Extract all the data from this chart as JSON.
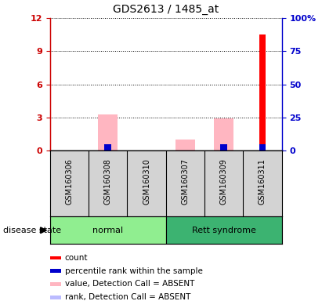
{
  "title": "GDS2613 / 1485_at",
  "samples": [
    "GSM160306",
    "GSM160308",
    "GSM160310",
    "GSM160307",
    "GSM160309",
    "GSM160311"
  ],
  "groups": [
    {
      "label": "normal",
      "indices": [
        0,
        1,
        2
      ],
      "color": "#90EE90"
    },
    {
      "label": "Rett syndrome",
      "indices": [
        3,
        4,
        5
      ],
      "color": "#3CB371"
    }
  ],
  "ylim_left": [
    0,
    12
  ],
  "ylim_right": [
    0,
    100
  ],
  "yticks_left": [
    0,
    3,
    6,
    9,
    12
  ],
  "yticks_right": [
    0,
    25,
    50,
    75,
    100
  ],
  "ytick_labels_left": [
    "0",
    "3",
    "6",
    "9",
    "12"
  ],
  "ytick_labels_right": [
    "0",
    "25",
    "50",
    "75",
    "100%"
  ],
  "bars": {
    "value_absent": {
      "color": "#FFB6C1",
      "data": [
        0,
        3.3,
        0,
        1.0,
        2.9,
        0
      ]
    },
    "rank_absent": {
      "color": "#BBBBFF",
      "data": [
        0,
        0.5,
        0,
        0,
        0.5,
        0.5
      ]
    },
    "count": {
      "color": "#FF0000",
      "data": [
        0,
        0,
        0,
        0,
        0,
        10.5
      ]
    },
    "percentile": {
      "color": "#0000CC",
      "data": [
        0,
        0.6,
        0,
        0,
        0.6,
        0.6
      ]
    }
  },
  "legend_items": [
    {
      "label": "count",
      "color": "#FF0000"
    },
    {
      "label": "percentile rank within the sample",
      "color": "#0000CC"
    },
    {
      "label": "value, Detection Call = ABSENT",
      "color": "#FFB6C1"
    },
    {
      "label": "rank, Detection Call = ABSENT",
      "color": "#BBBBFF"
    }
  ],
  "left_axis_color": "#CC0000",
  "right_axis_color": "#0000CC",
  "sample_box_color": "#D3D3D3",
  "disease_state_label": "disease state"
}
